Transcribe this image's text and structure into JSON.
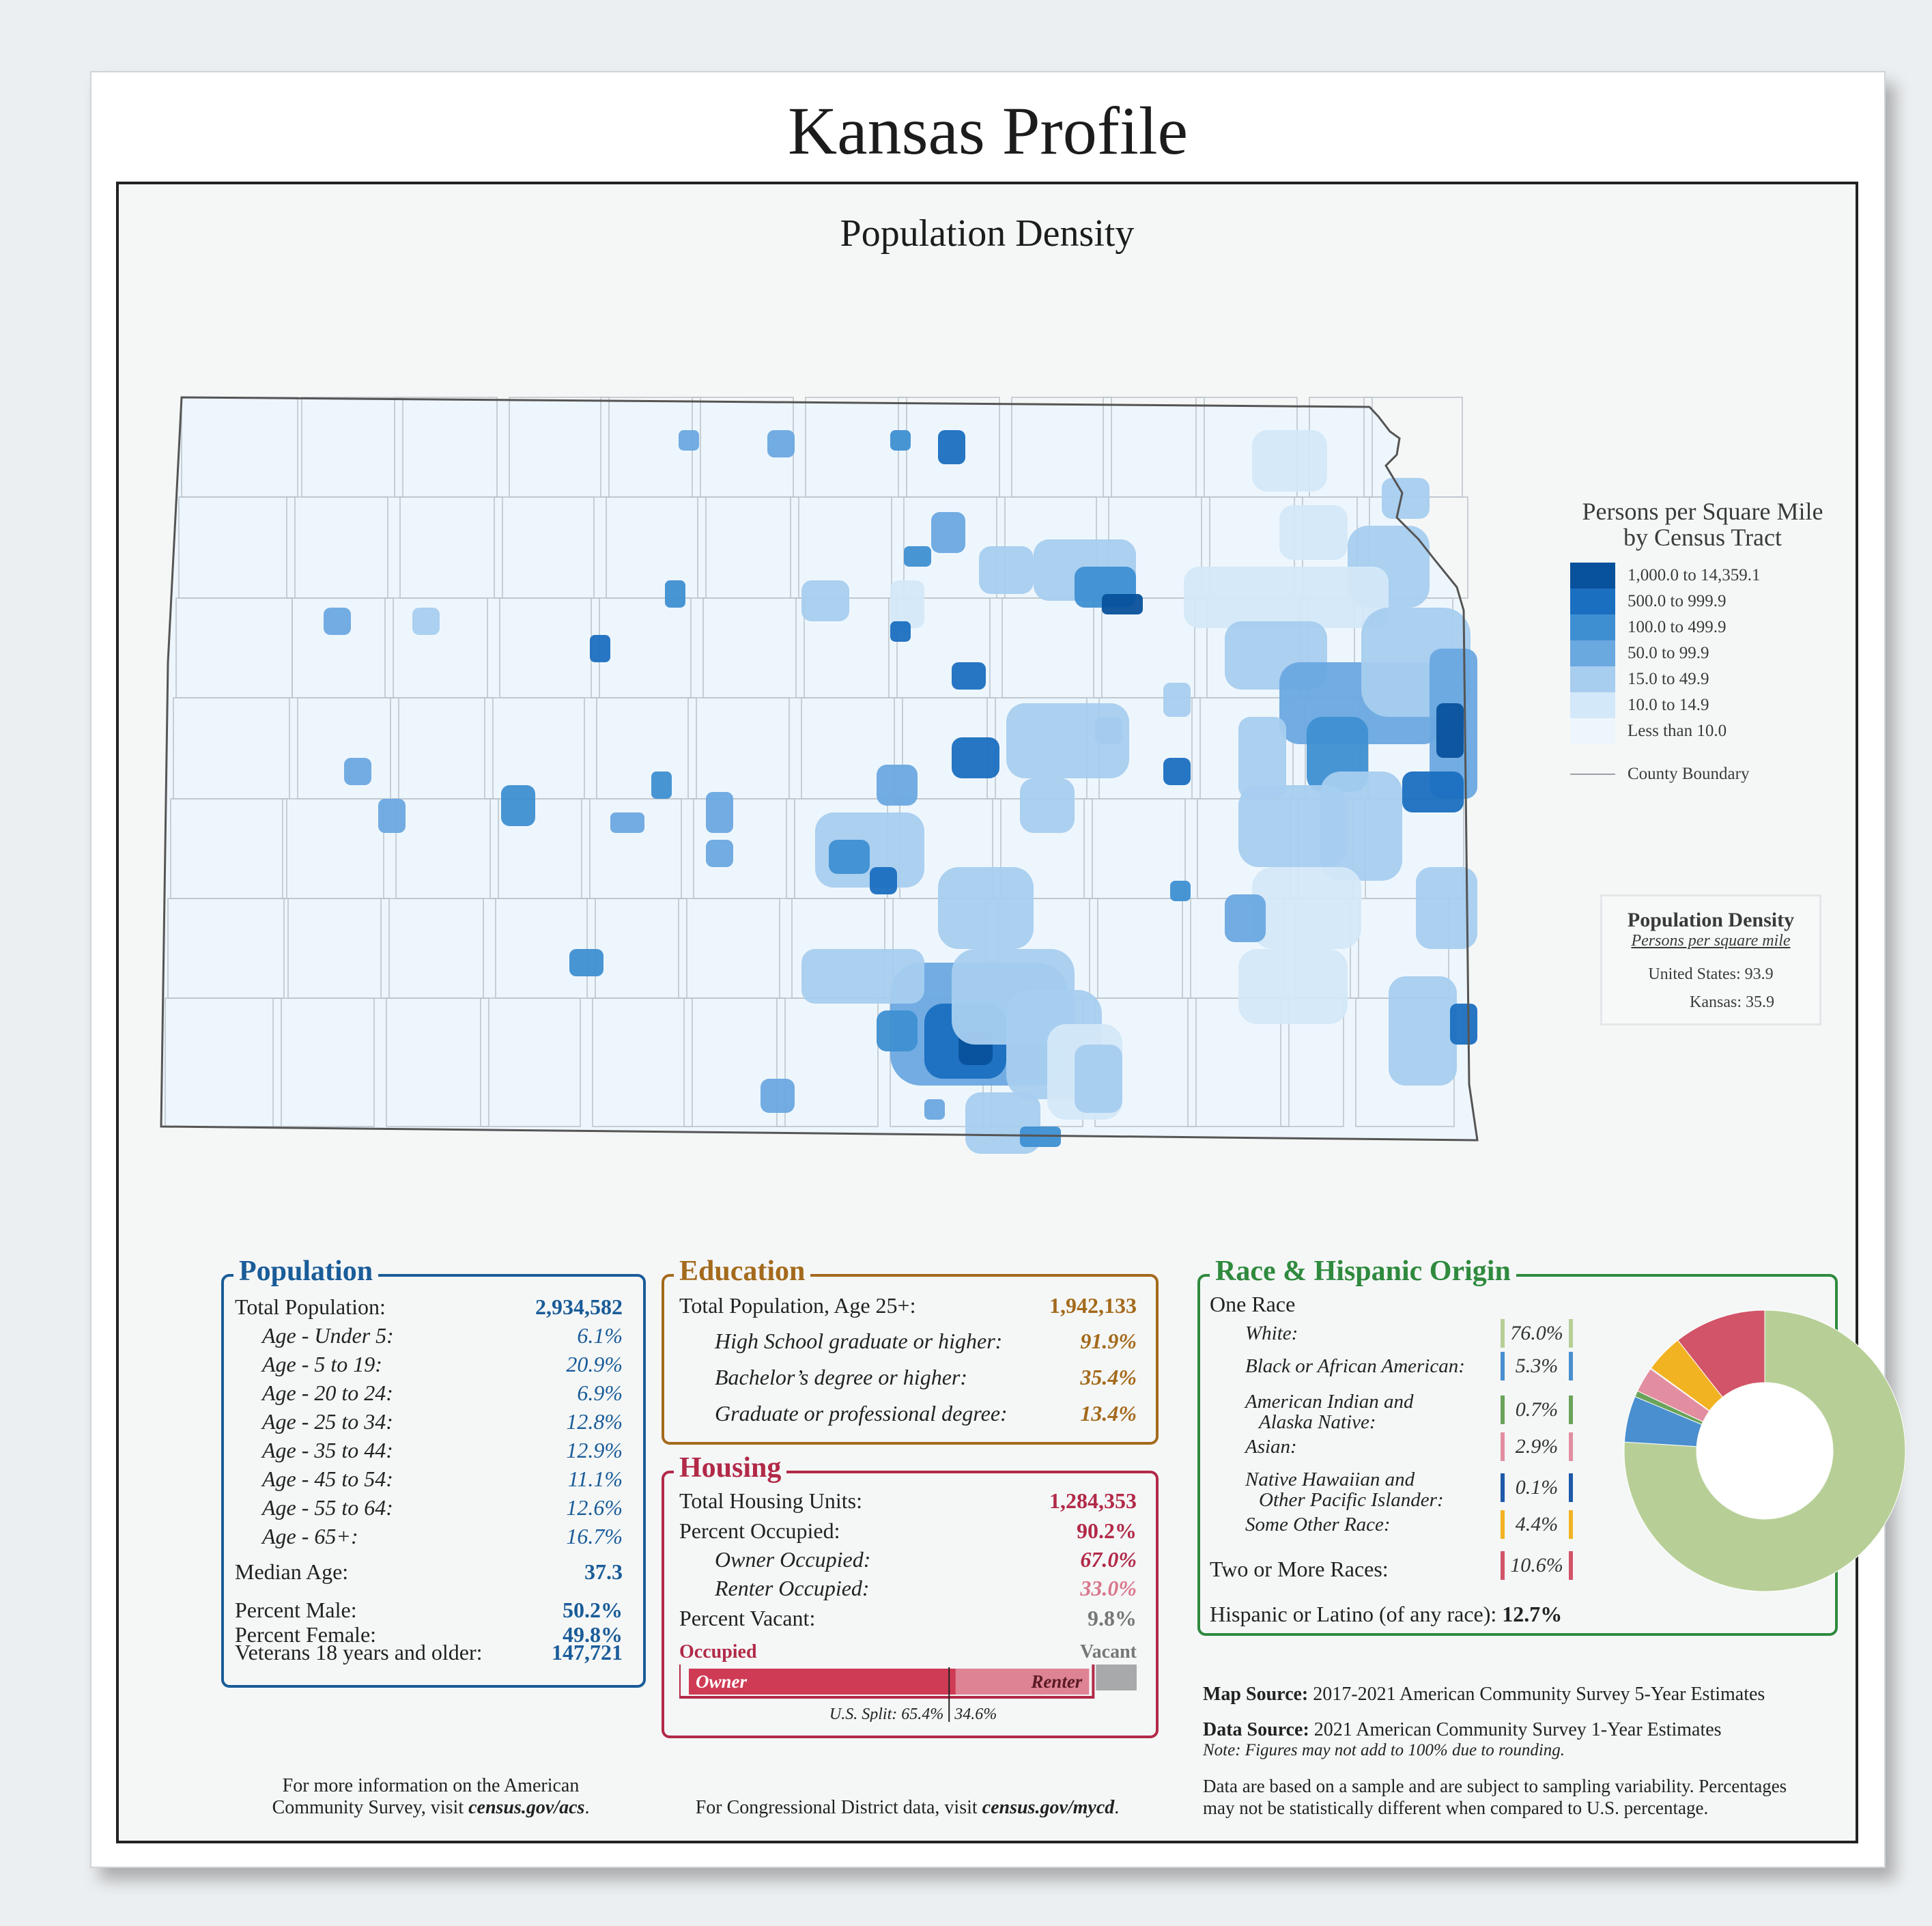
{
  "title": "Kansas Profile",
  "map": {
    "title": "Population Density",
    "legend_title_line1": "Persons per Square Mile",
    "legend_title_line2": "by Census Tract",
    "legend": [
      {
        "label": "1,000.0 to 14,359.1",
        "color": "#08519c"
      },
      {
        "label": "500.0 to 999.9",
        "color": "#1a6fc0"
      },
      {
        "label": "100.0 to 499.9",
        "color": "#3e8fd2"
      },
      {
        "label": "50.0 to 99.9",
        "color": "#6aa8e0"
      },
      {
        "label": "15.0 to 49.9",
        "color": "#a7cdef"
      },
      {
        "label": "10.0 to 14.9",
        "color": "#d3e8f8"
      },
      {
        "label": "Less than 10.0",
        "color": "#eef6fd"
      }
    ],
    "boundary_label": "County Boundary",
    "density_box": {
      "title": "Population Density",
      "subtitle": "Persons per square mile",
      "us_label": "United States:",
      "us_value": "93.9",
      "ks_label": "Kansas:",
      "ks_value": "35.9"
    }
  },
  "population": {
    "title": "Population",
    "total_label": "Total Population:",
    "total_value": "2,934,582",
    "ages": [
      {
        "label": "Age - Under 5:",
        "value": "6.1%"
      },
      {
        "label": "Age - 5 to 19:",
        "value": "20.9%"
      },
      {
        "label": "Age - 20 to 24:",
        "value": "6.9%"
      },
      {
        "label": "Age - 25 to 34:",
        "value": "12.8%"
      },
      {
        "label": "Age - 35 to 44:",
        "value": "12.9%"
      },
      {
        "label": "Age - 45 to 54:",
        "value": "11.1%"
      },
      {
        "label": "Age - 55 to 64:",
        "value": "12.6%"
      },
      {
        "label": "Age - 65+:",
        "value": "16.7%"
      }
    ],
    "median_label": "Median Age:",
    "median_value": "37.3",
    "male_label": "Percent Male:",
    "male_value": "50.2%",
    "female_label": "Percent Female:",
    "female_value": "49.8%",
    "veterans_label": "Veterans 18 years and older:",
    "veterans_value": "147,721"
  },
  "education": {
    "title": "Education",
    "total_label": "Total Population, Age 25+:",
    "total_value": "1,942,133",
    "rows": [
      {
        "label": "High School  graduate or higher:",
        "value": "91.9%"
      },
      {
        "label": "Bachelor’s degree or higher:",
        "value": "35.4%"
      },
      {
        "label": "Graduate or professional degree:",
        "value": "13.4%"
      }
    ]
  },
  "housing": {
    "title": "Housing",
    "total_label": "Total Housing Units:",
    "total_value": "1,284,353",
    "occupied_label": "Percent Occupied:",
    "occupied_value": "90.2%",
    "owner_label": "Owner Occupied:",
    "owner_value": "67.0%",
    "renter_label": "Renter Occupied:",
    "renter_value": "33.0%",
    "vacant_label": "Percent Vacant:",
    "vacant_value": "9.8%",
    "bar_occupied": "Occupied",
    "bar_vacant": "Vacant",
    "bar_owner": "Owner",
    "bar_renter": "Renter",
    "owner_share": 0.67,
    "occupied_share": 0.902,
    "us_split_label": "U.S. Split: 65.4%",
    "us_split_renter": "34.6%",
    "us_owner_share": 0.654
  },
  "race": {
    "title": "Race & Hispanic Origin",
    "one_race": "One Race",
    "rows": [
      {
        "label": "White:",
        "value": "76.0%",
        "color": "#b7cf96"
      },
      {
        "label": "Black or African American:",
        "value": "5.3%",
        "color": "#4a8fcf"
      },
      {
        "label": "American Indian and",
        "label2": "Alaska Native:",
        "value": "0.7%",
        "color": "#6aa35a"
      },
      {
        "label": "Asian:",
        "value": "2.9%",
        "color": "#e28ea0"
      },
      {
        "label": "Native Hawaiian and",
        "label2": "Other Pacific Islander:",
        "value": "0.1%",
        "color": "#1e5aa8"
      },
      {
        "label": "Some Other Race:",
        "value": "4.4%",
        "color": "#f2b322"
      }
    ],
    "two_more_label": "Two or More Races:",
    "two_more_value": "10.6%",
    "two_more_color": "#d25468",
    "hispanic_label": "Hispanic or Latino (of any race):",
    "hispanic_value": "12.7%"
  },
  "chart_data": {
    "type": "pie",
    "categories": [
      "White",
      "Black or African American",
      "American Indian and Alaska Native",
      "Asian",
      "Native Hawaiian and Other Pacific Islander",
      "Some Other Race",
      "Two or More Races"
    ],
    "values": [
      76.0,
      5.3,
      0.7,
      2.9,
      0.1,
      4.4,
      10.6
    ],
    "colors": [
      "#b7cf96",
      "#4a8fcf",
      "#6aa35a",
      "#e28ea0",
      "#1e5aa8",
      "#f2b322",
      "#d25468"
    ]
  },
  "sources": {
    "map_source_label": "Map Source:",
    "map_source": "2017-2021 American Community Survey 5-Year Estimates",
    "data_source_label": "Data Source:",
    "data_source": "2021 American Community Survey 1-Year Estimates",
    "note": "Note: Figures may not add to 100% due to rounding.",
    "sampling_line1": "Data are based on a sample and are subject to sampling variability. Percentages",
    "sampling_line2": "may not be statistically different when compared to U.S. percentage."
  },
  "footer": {
    "acs_line1": "For more information on the American",
    "acs_line2_pre": "Community Survey, visit ",
    "acs_link": "census.gov/acs",
    "acs_dot": ".",
    "cd_pre": "For Congressional District data, visit ",
    "cd_link": "census.gov/mycd",
    "cd_dot": "."
  }
}
